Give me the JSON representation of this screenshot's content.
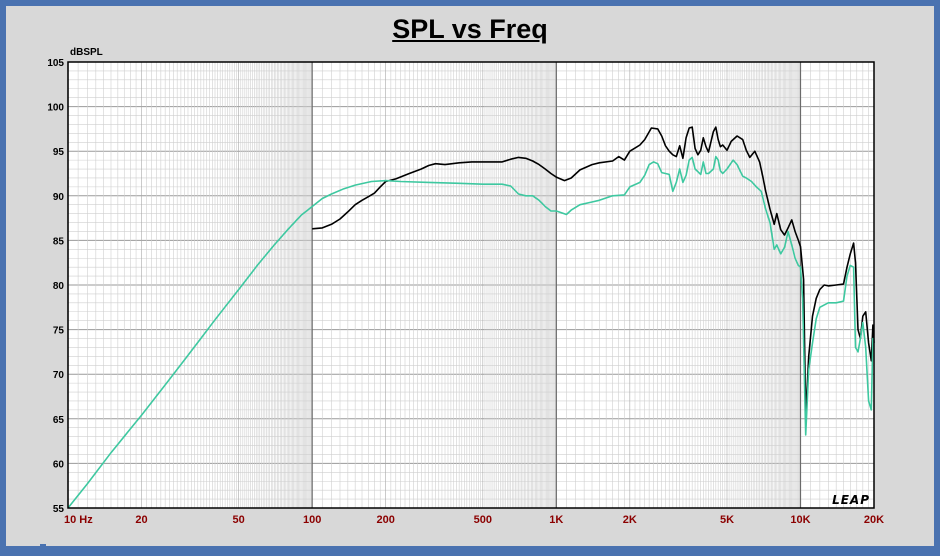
{
  "chart_data": {
    "type": "line",
    "title": "SPL vs Freq",
    "ylabel": "dBSPL",
    "xscale": "log",
    "xlim": [
      10,
      20000
    ],
    "ylim": [
      55,
      105
    ],
    "grid": true,
    "yticks": [
      55,
      60,
      65,
      70,
      75,
      80,
      85,
      90,
      95,
      100,
      105
    ],
    "xticks": [
      {
        "value": 10,
        "label": "10  Hz"
      },
      {
        "value": 20,
        "label": "20"
      },
      {
        "value": 50,
        "label": "50"
      },
      {
        "value": 100,
        "label": "100"
      },
      {
        "value": 200,
        "label": "200"
      },
      {
        "value": 500,
        "label": "500"
      },
      {
        "value": 1000,
        "label": "1K"
      },
      {
        "value": 2000,
        "label": "2K"
      },
      {
        "value": 5000,
        "label": "5K"
      },
      {
        "value": 10000,
        "label": "10K"
      },
      {
        "value": 20000,
        "label": "20K"
      }
    ],
    "series": [
      {
        "color": "#000000",
        "points": [
          [
            100,
            86.3
          ],
          [
            110,
            86.4
          ],
          [
            120,
            86.8
          ],
          [
            130,
            87.4
          ],
          [
            140,
            88.2
          ],
          [
            150,
            89.0
          ],
          [
            160,
            89.5
          ],
          [
            170,
            89.9
          ],
          [
            180,
            90.3
          ],
          [
            190,
            91.0
          ],
          [
            200,
            91.6
          ],
          [
            220,
            91.9
          ],
          [
            250,
            92.5
          ],
          [
            280,
            93.0
          ],
          [
            300,
            93.4
          ],
          [
            320,
            93.6
          ],
          [
            350,
            93.5
          ],
          [
            400,
            93.7
          ],
          [
            450,
            93.8
          ],
          [
            500,
            93.8
          ],
          [
            550,
            93.8
          ],
          [
            600,
            93.8
          ],
          [
            650,
            94.1
          ],
          [
            700,
            94.3
          ],
          [
            750,
            94.2
          ],
          [
            800,
            93.9
          ],
          [
            850,
            93.5
          ],
          [
            900,
            93.0
          ],
          [
            950,
            92.5
          ],
          [
            1000,
            92.1
          ],
          [
            1080,
            91.7
          ],
          [
            1150,
            92.0
          ],
          [
            1250,
            92.9
          ],
          [
            1400,
            93.5
          ],
          [
            1500,
            93.7
          ],
          [
            1700,
            93.9
          ],
          [
            1800,
            94.4
          ],
          [
            1900,
            94.0
          ],
          [
            2000,
            95.0
          ],
          [
            2200,
            95.7
          ],
          [
            2300,
            96.3
          ],
          [
            2450,
            97.6
          ],
          [
            2600,
            97.5
          ],
          [
            2700,
            96.7
          ],
          [
            2800,
            95.6
          ],
          [
            2900,
            95.0
          ],
          [
            3000,
            94.6
          ],
          [
            3100,
            94.4
          ],
          [
            3200,
            95.6
          ],
          [
            3300,
            94.2
          ],
          [
            3400,
            96.5
          ],
          [
            3500,
            97.6
          ],
          [
            3600,
            97.7
          ],
          [
            3700,
            95.3
          ],
          [
            3800,
            94.6
          ],
          [
            3900,
            95.1
          ],
          [
            4000,
            96.5
          ],
          [
            4100,
            95.5
          ],
          [
            4200,
            94.9
          ],
          [
            4400,
            97.2
          ],
          [
            4500,
            97.7
          ],
          [
            4600,
            96.3
          ],
          [
            4700,
            95.5
          ],
          [
            4800,
            95.7
          ],
          [
            5000,
            95.1
          ],
          [
            5200,
            96.1
          ],
          [
            5500,
            96.7
          ],
          [
            5800,
            96.3
          ],
          [
            6000,
            95.1
          ],
          [
            6200,
            94.3
          ],
          [
            6500,
            95.0
          ],
          [
            6800,
            93.8
          ],
          [
            7000,
            92.2
          ],
          [
            7200,
            90.5
          ],
          [
            7500,
            88.5
          ],
          [
            7800,
            86.8
          ],
          [
            8000,
            88.0
          ],
          [
            8300,
            86.2
          ],
          [
            8600,
            85.6
          ],
          [
            8900,
            86.4
          ],
          [
            9200,
            87.3
          ],
          [
            9500,
            86.0
          ],
          [
            9800,
            85.0
          ],
          [
            10000,
            84.3
          ],
          [
            10300,
            80.6
          ],
          [
            10500,
            65.2
          ],
          [
            10800,
            72.0
          ],
          [
            11200,
            76.5
          ],
          [
            11600,
            78.5
          ],
          [
            12000,
            79.5
          ],
          [
            12500,
            80.0
          ],
          [
            13000,
            79.9
          ],
          [
            14000,
            80.0
          ],
          [
            15000,
            80.1
          ],
          [
            15500,
            82.0
          ],
          [
            16000,
            83.5
          ],
          [
            16500,
            84.7
          ],
          [
            16800,
            82.5
          ],
          [
            17200,
            75.0
          ],
          [
            17600,
            74.0
          ],
          [
            18000,
            76.5
          ],
          [
            18500,
            77.0
          ],
          [
            19000,
            73.5
          ],
          [
            19500,
            71.5
          ],
          [
            19800,
            75.5
          ],
          [
            20000,
            73.5
          ]
        ]
      },
      {
        "color": "#3ec8a0",
        "points": [
          [
            10,
            55.0
          ],
          [
            12,
            57.7
          ],
          [
            15,
            61.2
          ],
          [
            20,
            65.4
          ],
          [
            25,
            68.8
          ],
          [
            30,
            71.6
          ],
          [
            35,
            74.0
          ],
          [
            40,
            76.1
          ],
          [
            50,
            79.5
          ],
          [
            60,
            82.3
          ],
          [
            70,
            84.5
          ],
          [
            80,
            86.3
          ],
          [
            90,
            87.8
          ],
          [
            100,
            88.8
          ],
          [
            110,
            89.7
          ],
          [
            120,
            90.2
          ],
          [
            135,
            90.8
          ],
          [
            150,
            91.2
          ],
          [
            175,
            91.6
          ],
          [
            200,
            91.7
          ],
          [
            230,
            91.6
          ],
          [
            300,
            91.5
          ],
          [
            400,
            91.4
          ],
          [
            500,
            91.3
          ],
          [
            600,
            91.3
          ],
          [
            650,
            91.1
          ],
          [
            700,
            90.2
          ],
          [
            750,
            90.0
          ],
          [
            800,
            90.0
          ],
          [
            850,
            89.5
          ],
          [
            900,
            88.8
          ],
          [
            950,
            88.3
          ],
          [
            1000,
            88.3
          ],
          [
            1050,
            88.1
          ],
          [
            1100,
            87.9
          ],
          [
            1150,
            88.4
          ],
          [
            1250,
            89.0
          ],
          [
            1400,
            89.3
          ],
          [
            1500,
            89.5
          ],
          [
            1700,
            90.0
          ],
          [
            1900,
            90.1
          ],
          [
            2000,
            91.0
          ],
          [
            2200,
            91.5
          ],
          [
            2300,
            92.3
          ],
          [
            2400,
            93.5
          ],
          [
            2500,
            93.8
          ],
          [
            2600,
            93.6
          ],
          [
            2700,
            92.6
          ],
          [
            2800,
            92.5
          ],
          [
            2900,
            92.4
          ],
          [
            3000,
            90.5
          ],
          [
            3100,
            91.5
          ],
          [
            3200,
            93.0
          ],
          [
            3300,
            91.5
          ],
          [
            3400,
            92.3
          ],
          [
            3500,
            94.0
          ],
          [
            3600,
            94.3
          ],
          [
            3700,
            93.0
          ],
          [
            3800,
            92.7
          ],
          [
            3900,
            92.4
          ],
          [
            4000,
            93.8
          ],
          [
            4100,
            92.5
          ],
          [
            4200,
            92.5
          ],
          [
            4400,
            93.0
          ],
          [
            4500,
            94.4
          ],
          [
            4600,
            94.0
          ],
          [
            4700,
            92.8
          ],
          [
            4800,
            92.5
          ],
          [
            5000,
            93.0
          ],
          [
            5300,
            94.0
          ],
          [
            5500,
            93.5
          ],
          [
            5800,
            92.2
          ],
          [
            6000,
            92.0
          ],
          [
            6300,
            91.6
          ],
          [
            6600,
            91.0
          ],
          [
            6900,
            90.5
          ],
          [
            7200,
            88.5
          ],
          [
            7500,
            87.0
          ],
          [
            7800,
            84.0
          ],
          [
            8000,
            84.5
          ],
          [
            8300,
            83.5
          ],
          [
            8600,
            84.2
          ],
          [
            8900,
            86.0
          ],
          [
            9200,
            84.5
          ],
          [
            9500,
            83.0
          ],
          [
            9800,
            82.2
          ],
          [
            10000,
            82.0
          ],
          [
            10200,
            78.5
          ],
          [
            10500,
            63.2
          ],
          [
            10800,
            70.5
          ],
          [
            11200,
            73.5
          ],
          [
            11600,
            76.2
          ],
          [
            12000,
            77.5
          ],
          [
            13000,
            78.0
          ],
          [
            14000,
            78.0
          ],
          [
            15000,
            78.2
          ],
          [
            15500,
            81.0
          ],
          [
            16000,
            82.2
          ],
          [
            16500,
            82.0
          ],
          [
            16800,
            73.0
          ],
          [
            17200,
            72.5
          ],
          [
            17600,
            74.0
          ],
          [
            18000,
            75.8
          ],
          [
            18500,
            73.0
          ],
          [
            19000,
            67.0
          ],
          [
            19500,
            66.0
          ],
          [
            19800,
            74.0
          ],
          [
            20000,
            73.5
          ]
        ]
      }
    ]
  },
  "logo_text": "LEAP"
}
